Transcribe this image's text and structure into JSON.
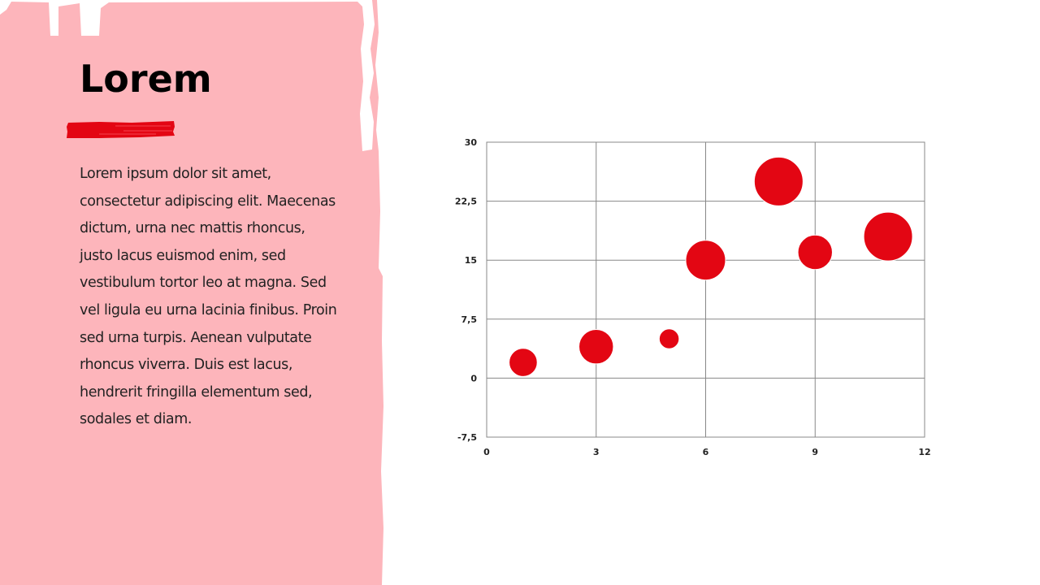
{
  "slide": {
    "title": "Lorem",
    "body": "Lorem ipsum dolor sit amet, consectetur adipiscing elit. Maecenas dictum, urna nec mattis rhoncus, justo lacus euismod enim, sed vestibulum tortor leo at magna. Sed vel ligula eu urna lacinia finibus. Proin sed urna turpis. Aenean vulputate rhoncus viverra. Duis est lacus, hendrerit fringilla elementum sed, sodales et diam.",
    "colors": {
      "panel": "#fdb5bb",
      "accent": "#e30613",
      "grid": "#888888"
    }
  },
  "chart_data": {
    "type": "bubble",
    "title": "",
    "xlabel": "",
    "ylabel": "",
    "xlim": [
      0,
      12
    ],
    "ylim": [
      -7.5,
      30
    ],
    "xticks": [
      "0",
      "3",
      "6",
      "9",
      "12"
    ],
    "yticks": [
      "30",
      "22,5",
      "15",
      "7,5",
      "0",
      "-7,5"
    ],
    "xtick_values": [
      0,
      3,
      6,
      9,
      12
    ],
    "ytick_values": [
      30,
      22.5,
      15,
      7.5,
      0,
      -7.5
    ],
    "grid": true,
    "legend": "none",
    "series": [
      {
        "color": "#e30613",
        "points": [
          {
            "x": 1,
            "y": 2,
            "size": 2
          },
          {
            "x": 3,
            "y": 4,
            "size": 3
          },
          {
            "x": 5,
            "y": 5,
            "size": 1
          },
          {
            "x": 6,
            "y": 15,
            "size": 4
          },
          {
            "x": 8,
            "y": 25,
            "size": 6
          },
          {
            "x": 9,
            "y": 16,
            "size": 3
          },
          {
            "x": 11,
            "y": 18,
            "size": 6
          }
        ]
      }
    ]
  }
}
